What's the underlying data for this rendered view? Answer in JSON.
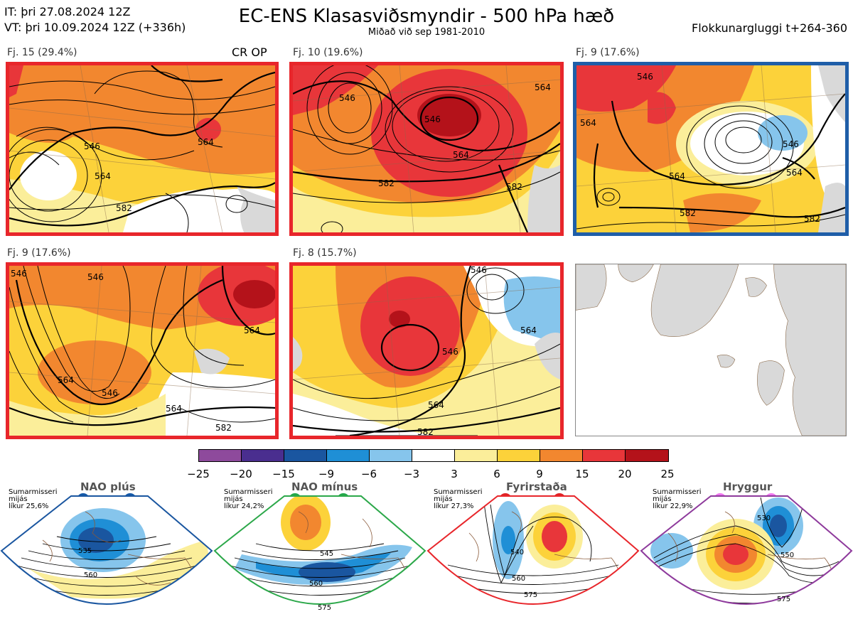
{
  "header": {
    "it": "IT: þri 27.08.2024 12Z",
    "vt": "VT: þri 10.09.2024 12Z  (+336h)",
    "title": "EC-ENS Klasasviðsmyndir - 500 hPa hæð",
    "subtitle": "Miðað við sep 1981-2010",
    "window": "Flokkunargluggi t+264-360"
  },
  "panels": [
    {
      "label": "Fj. 15 (29.4%)",
      "tag": "CR OP",
      "border": "#e8262b",
      "contours": [
        "546",
        "564",
        "564",
        "582"
      ]
    },
    {
      "label": "Fj. 10 (19.6%)",
      "border": "#e8262b",
      "contours": [
        "546",
        "546",
        "564",
        "564",
        "582",
        "582"
      ]
    },
    {
      "label": "Fj. 9 (17.6%)",
      "border": "#1f5ea8",
      "contours": [
        "564",
        "546",
        "564",
        "546",
        "582",
        "582",
        "564"
      ]
    },
    {
      "label": "Fj. 9 (17.6%)",
      "border": "#e8262b",
      "contours": [
        "546",
        "546",
        "564",
        "564",
        "546",
        "564",
        "582"
      ]
    },
    {
      "label": "Fj. 8 (15.7%)",
      "border": "#e8262b",
      "contours": [
        "546",
        "564",
        "546",
        "564",
        "582"
      ]
    }
  ],
  "colorbar": {
    "colors": [
      "#8e4a9c",
      "#4a2e8f",
      "#1a56a0",
      "#1f8fd6",
      "#86c5ec",
      "#ffffff",
      "#fbee9a",
      "#fcd23a",
      "#f2872f",
      "#e8363a",
      "#b4121a"
    ],
    "ticks": [
      "−25",
      "−20",
      "−15",
      "−9",
      "−6",
      "−3",
      "3",
      "6",
      "9",
      "15",
      "20",
      "25"
    ]
  },
  "regimes": [
    {
      "name": "NAO plús",
      "season": "Sumarmisseri",
      "anchor": "mijás",
      "prob": "líkur 25,6%",
      "color": "#1a56a0",
      "dots": "#1459a8",
      "contours": [
        "535",
        "560"
      ]
    },
    {
      "name": "NAO mínus",
      "season": "Sumarmisseri",
      "anchor": "mijás",
      "prob": "líkur 24,2%",
      "color": "#2ca84a",
      "dots": "#22a84a",
      "contours": [
        "545",
        "560",
        "575"
      ]
    },
    {
      "name": "Fyrirstaða",
      "season": "Sumarmisseri",
      "anchor": "mijás",
      "prob": "líkur 27,3%",
      "color": "#e8262b",
      "dots": "#e02226",
      "contours": [
        "540",
        "560",
        "575"
      ]
    },
    {
      "name": "Hryggur",
      "season": "Sumarmisseri",
      "anchor": "mijás",
      "prob": "líkur 22,9%",
      "color": "#8e3a9c",
      "dots": "#ee77ee",
      "contours": [
        "530",
        "550",
        "575"
      ]
    }
  ]
}
